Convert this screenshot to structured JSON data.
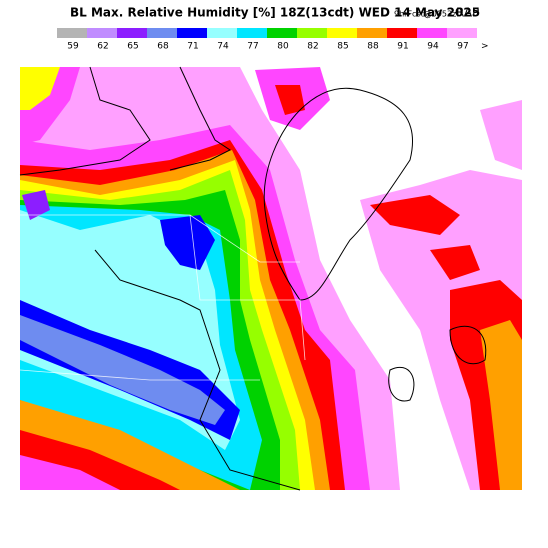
{
  "header": {
    "title": "BL Max. Relative Humidity [%] 18Z(13cdt) WED 14 May 2025",
    "forecast": "9hrFcst@0953z",
    "model": "RAP"
  },
  "legend": {
    "items": [
      {
        "value": 59,
        "color": "#b4b4b4"
      },
      {
        "value": 62,
        "color": "#c08cff"
      },
      {
        "value": 65,
        "color": "#8c1eff"
      },
      {
        "value": 68,
        "color": "#6e8cf0"
      },
      {
        "value": 71,
        "color": "#0000ff"
      },
      {
        "value": 74,
        "color": "#96ffff"
      },
      {
        "value": 77,
        "color": "#00e6ff"
      },
      {
        "value": 80,
        "color": "#00d200"
      },
      {
        "value": 82,
        "color": "#96ff00"
      },
      {
        "value": 85,
        "color": "#ffff00"
      },
      {
        "value": 88,
        "color": "#ffa000"
      },
      {
        "value": 91,
        "color": "#ff0000"
      },
      {
        "value": 94,
        "color": "#ff46ff"
      },
      {
        "value": 97,
        "color": "#ffa0ff"
      }
    ],
    "overflow_label": ">"
  }
}
